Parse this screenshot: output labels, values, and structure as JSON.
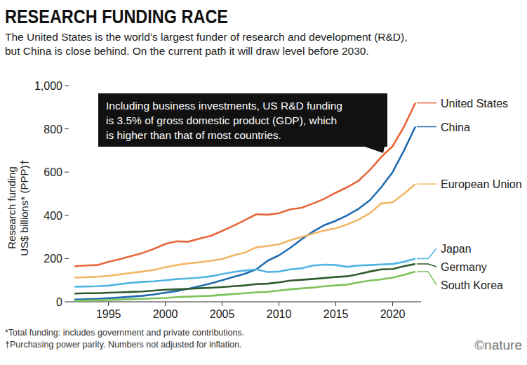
{
  "chart_data": {
    "type": "line",
    "title": "RESEARCH FUNDING RACE",
    "subtitle": [
      "The United States is the world’s largest funder of research and development (R&D),",
      "but China is close behind. On the current path it will draw level before 2030."
    ],
    "annotation": [
      "Including business investments, US R&D funding",
      "is 3.5% of gross domestic product (GDP), which",
      "is higher than that of most countries."
    ],
    "ylabel": [
      "Research funding",
      "US$ billions* (PPP)†"
    ],
    "notes": [
      "*Total funding: includes government and private contributions.",
      "†Purchasing power parity. Numbers not adjusted for inflation."
    ],
    "source": "©nature",
    "x": [
      1992,
      1993,
      1994,
      1995,
      1996,
      1997,
      1998,
      1999,
      2000,
      2001,
      2002,
      2003,
      2004,
      2005,
      2006,
      2007,
      2008,
      2009,
      2010,
      2011,
      2012,
      2013,
      2014,
      2015,
      2016,
      2017,
      2018,
      2019,
      2020,
      2021,
      2022
    ],
    "xlim": [
      1991.5,
      2022.5
    ],
    "xticks": [
      1995,
      2000,
      2005,
      2010,
      2015,
      2020
    ],
    "ylim": [
      0,
      1000
    ],
    "yticks": [
      0,
      200,
      400,
      600,
      800,
      {
        "value": 1000,
        "label": "1,000"
      }
    ],
    "grid": false,
    "series": [
      {
        "name": "United States",
        "color": "#e8663a",
        "values": [
          165,
          168,
          170,
          185,
          197,
          212,
          226,
          245,
          268,
          280,
          278,
          292,
          305,
          328,
          352,
          378,
          405,
          403,
          410,
          428,
          435,
          455,
          477,
          505,
          530,
          560,
          610,
          670,
          720,
          810,
          920
        ]
      },
      {
        "name": "China",
        "color": "#1f6cb0",
        "values": [
          10,
          12,
          14,
          17,
          20,
          24,
          28,
          34,
          42,
          50,
          60,
          72,
          85,
          100,
          115,
          130,
          150,
          190,
          215,
          250,
          290,
          325,
          355,
          375,
          400,
          430,
          470,
          530,
          600,
          700,
          810
        ]
      },
      {
        "name": "European Union",
        "color": "#f2b666",
        "values": [
          112,
          114,
          116,
          120,
          127,
          134,
          140,
          148,
          160,
          170,
          178,
          183,
          190,
          198,
          215,
          228,
          252,
          258,
          266,
          285,
          300,
          315,
          330,
          340,
          358,
          380,
          410,
          455,
          460,
          500,
          545
        ]
      },
      {
        "name": "Japan",
        "color": "#4fb3e3",
        "values": [
          70,
          71,
          72,
          75,
          82,
          88,
          92,
          95,
          100,
          105,
          108,
          112,
          118,
          128,
          138,
          145,
          150,
          138,
          140,
          150,
          155,
          168,
          172,
          170,
          162,
          168,
          170,
          173,
          175,
          185,
          200
        ]
      },
      {
        "name": "Germany",
        "color": "#2f5a2b",
        "values": [
          38,
          40,
          40,
          42,
          44,
          46,
          48,
          52,
          56,
          58,
          60,
          63,
          65,
          68,
          72,
          76,
          82,
          84,
          90,
          98,
          102,
          106,
          110,
          115,
          118,
          128,
          140,
          150,
          152,
          165,
          175
        ]
      },
      {
        "name": "South Korea",
        "color": "#7cc35a",
        "values": [
          5,
          6,
          7,
          8,
          10,
          12,
          14,
          16,
          18,
          22,
          24,
          26,
          28,
          32,
          36,
          40,
          44,
          46,
          52,
          58,
          62,
          66,
          72,
          76,
          80,
          90,
          98,
          104,
          112,
          125,
          140
        ]
      }
    ]
  }
}
